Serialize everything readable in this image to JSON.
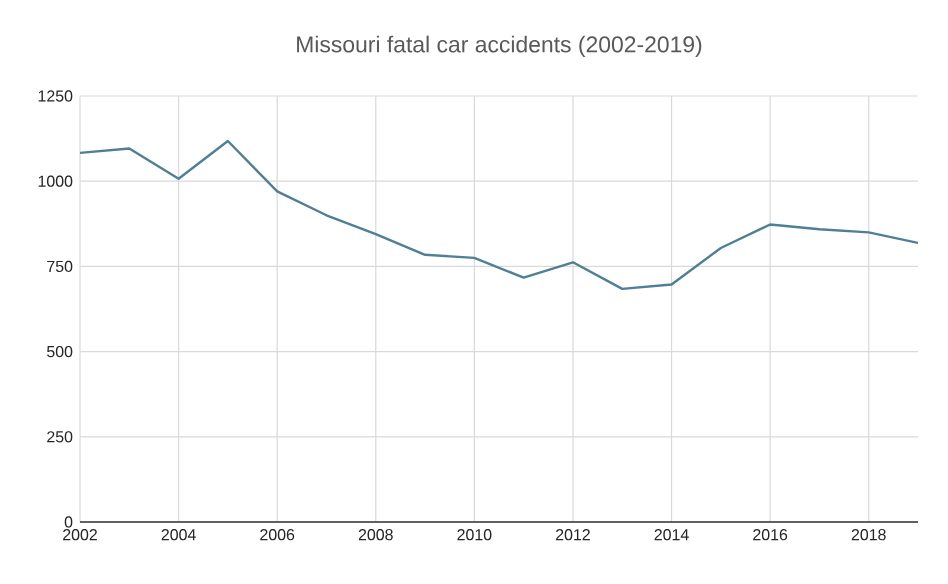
{
  "chart_data": {
    "type": "line",
    "title": "Missouri fatal car accidents (2002-2019)",
    "x": [
      2002,
      2003,
      2004,
      2005,
      2006,
      2007,
      2008,
      2009,
      2010,
      2011,
      2012,
      2013,
      2014,
      2015,
      2016,
      2017,
      2018,
      2019
    ],
    "series": [
      {
        "color": "#4f7f97",
        "values": [
          1083,
          1096,
          1007,
          1118,
          970,
          900,
          845,
          784,
          775,
          717,
          762,
          684,
          697,
          804,
          873,
          859,
          850,
          819
        ]
      }
    ],
    "xlim": [
      2002,
      2019
    ],
    "xticks": [
      2002,
      2004,
      2006,
      2008,
      2010,
      2012,
      2014,
      2016,
      2018
    ],
    "ylim": [
      0,
      1250
    ],
    "yticks": [
      0,
      250,
      500,
      750,
      1000,
      1250
    ],
    "grid": true,
    "legend": false,
    "marker": "none",
    "line_style": "solid"
  }
}
